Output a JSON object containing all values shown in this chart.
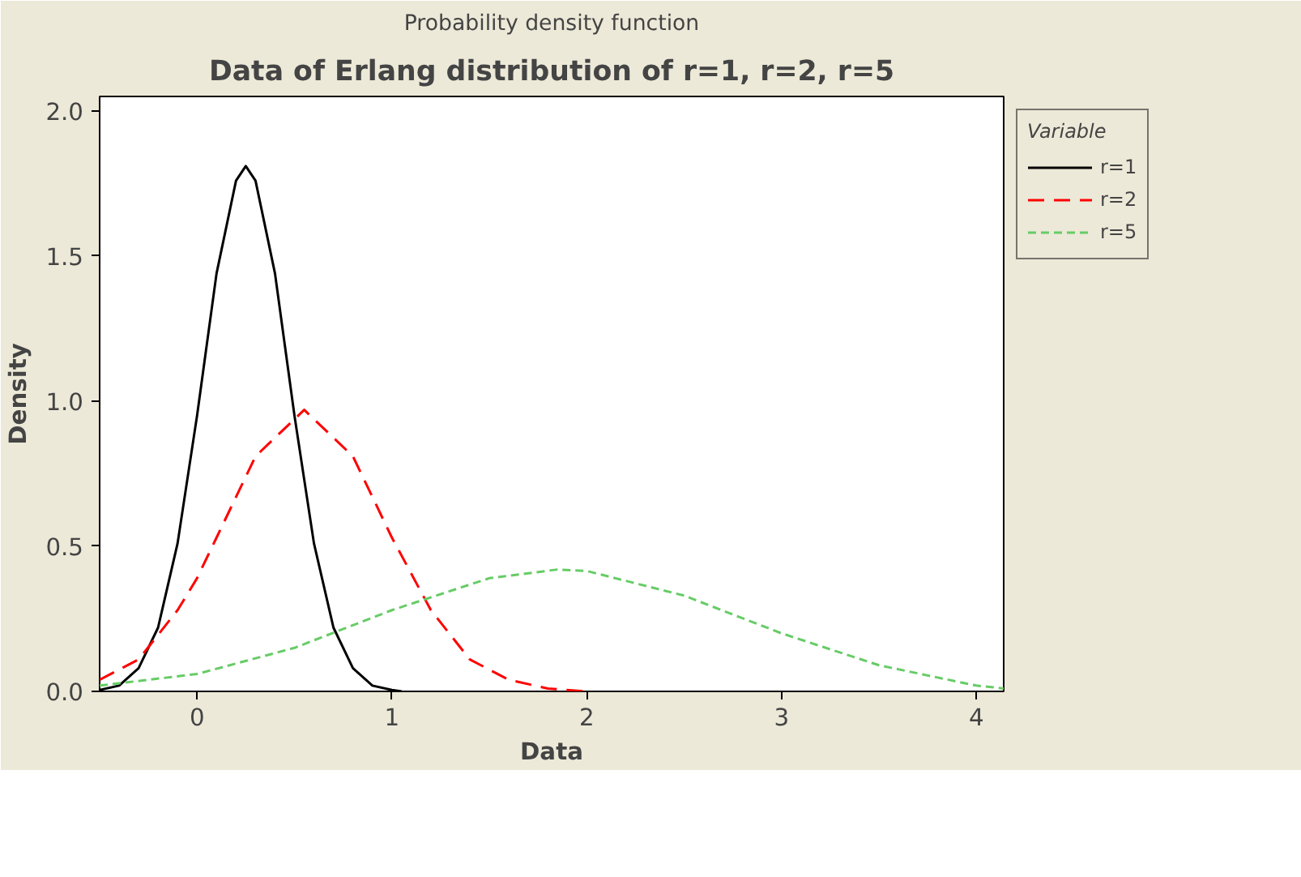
{
  "chart_data": {
    "type": "line",
    "subtitle": "Probability density function",
    "title": "Data of Erlang distribution of r=1, r=2, r=5",
    "xlabel": "Data",
    "ylabel": "Density",
    "legend_title": "Variable",
    "legend": "top right",
    "grid": false,
    "marker": "none",
    "xlim": [
      -0.5,
      4.14
    ],
    "ylim": [
      0,
      2.05
    ],
    "xticks": [
      0,
      1,
      2,
      3,
      4
    ],
    "yticks": [
      {
        "value": 0,
        "label": "0.0"
      },
      {
        "value": 0.5,
        "label": "0.5"
      },
      {
        "value": 1,
        "label": "1.0"
      },
      {
        "value": 1.5,
        "label": "1.5"
      },
      {
        "value": 2,
        "label": "2.0"
      }
    ],
    "series": [
      {
        "name": "r=1",
        "color": "#000000",
        "line_style": "solid",
        "x": [
          -0.5,
          -0.4,
          -0.3,
          -0.2,
          -0.1,
          0,
          0.1,
          0.2,
          0.25,
          0.3,
          0.4,
          0.5,
          0.6,
          0.7,
          0.8,
          0.9,
          1.0,
          1.05
        ],
        "values": [
          0.005,
          0.02,
          0.08,
          0.22,
          0.51,
          0.95,
          1.44,
          1.76,
          1.81,
          1.76,
          1.44,
          0.95,
          0.51,
          0.22,
          0.08,
          0.02,
          0.005,
          0
        ]
      },
      {
        "name": "r=2",
        "color": "#ff0000",
        "line_style": "dashed",
        "x": [
          -0.5,
          -0.3,
          -0.1,
          0,
          0.1,
          0.3,
          0.55,
          0.8,
          1.0,
          1.2,
          1.4,
          1.6,
          1.8,
          2.0
        ],
        "values": [
          0.04,
          0.11,
          0.28,
          0.39,
          0.53,
          0.81,
          0.97,
          0.81,
          0.53,
          0.28,
          0.11,
          0.04,
          0.01,
          0
        ]
      },
      {
        "name": "r=5",
        "color": "#66cc66",
        "line_style": "dotted",
        "x": [
          -0.5,
          0,
          0.5,
          1.0,
          1.5,
          1.85,
          2.0,
          2.5,
          3.0,
          3.5,
          4.0,
          4.14
        ],
        "values": [
          0.02,
          0.06,
          0.15,
          0.28,
          0.39,
          0.42,
          0.415,
          0.33,
          0.2,
          0.09,
          0.02,
          0.01
        ]
      }
    ]
  }
}
